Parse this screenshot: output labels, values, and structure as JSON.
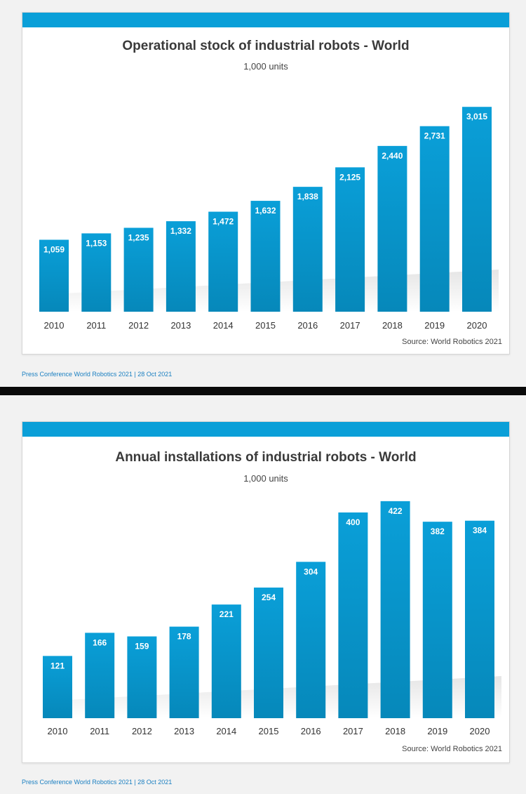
{
  "colors": {
    "bar": "#0a9fd8",
    "bar_dark": "#0688ba",
    "header": "#0a9fd8",
    "footer_text": "#1a7fc1"
  },
  "panels": [
    {
      "title": "Operational stock of industrial robots - World",
      "subtitle": "1,000 units",
      "source": "Source: World Robotics 2021",
      "footer": "Press Conference World Robotics 2021  |  28 Oct 2021"
    },
    {
      "title": "Annual installations of industrial robots - World",
      "subtitle": "1,000 units",
      "source": "Source: World Robotics 2021",
      "footer": "Press Conference World Robotics 2021  |  28 Oct 2021"
    }
  ],
  "chart_data": [
    {
      "type": "bar",
      "title": "Operational stock of industrial robots - World",
      "subtitle": "1,000 units",
      "categories": [
        "2010",
        "2011",
        "2012",
        "2013",
        "2014",
        "2015",
        "2016",
        "2017",
        "2018",
        "2019",
        "2020"
      ],
      "values": [
        1059,
        1153,
        1235,
        1332,
        1472,
        1632,
        1838,
        2125,
        2440,
        2731,
        3015
      ],
      "data_labels": [
        "1,059",
        "1,153",
        "1,235",
        "1,332",
        "1,472",
        "1,632",
        "1,838",
        "2,125",
        "2,440",
        "2,731",
        "3,015"
      ],
      "ylim": [
        0,
        3100
      ],
      "grid": false,
      "legend": "none"
    },
    {
      "type": "bar",
      "title": "Annual installations of industrial robots - World",
      "subtitle": "1,000 units",
      "categories": [
        "2010",
        "2011",
        "2012",
        "2013",
        "2014",
        "2015",
        "2016",
        "2017",
        "2018",
        "2019",
        "2020"
      ],
      "values": [
        121,
        166,
        159,
        178,
        221,
        254,
        304,
        400,
        422,
        382,
        384
      ],
      "data_labels": [
        "121",
        "166",
        "159",
        "178",
        "221",
        "254",
        "304",
        "400",
        "422",
        "382",
        "384"
      ],
      "ylim": [
        0,
        430
      ],
      "grid": false,
      "legend": "none"
    }
  ]
}
